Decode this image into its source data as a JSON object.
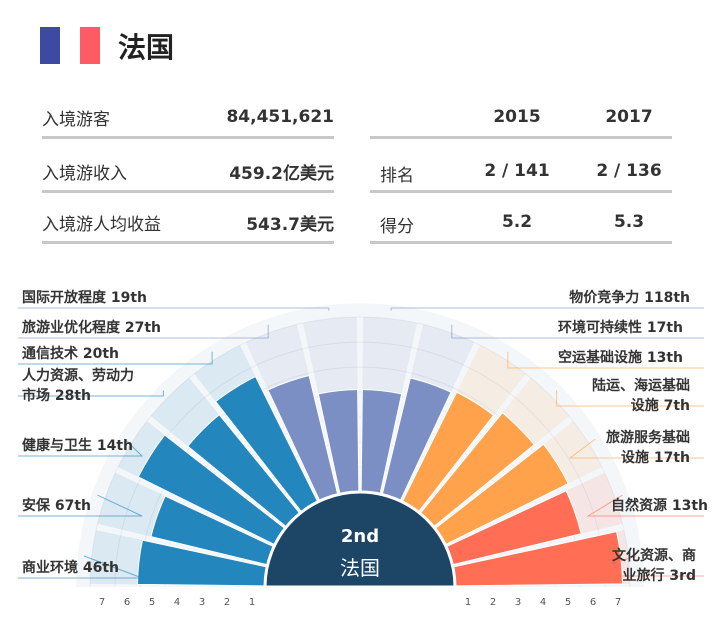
{
  "header": {
    "title": "法国",
    "flag_colors": [
      "#3d4aa1",
      "#ffffff",
      "#ff5b65"
    ]
  },
  "stats": [
    {
      "label": "入境游客",
      "value": "84,451,621"
    },
    {
      "label": "入境游收入",
      "value": "459.2亿美元"
    },
    {
      "label": "入境游人均收益",
      "value": "543.7美元"
    }
  ],
  "ranking": {
    "years": [
      "2015",
      "2017"
    ],
    "rows": [
      {
        "label": "排名",
        "v2015": "2 / 141",
        "v2017": "2 / 136"
      },
      {
        "label": "得分",
        "v2015": "5.2",
        "v2017": "5.3"
      }
    ]
  },
  "chart_data": {
    "type": "polar-bar",
    "center_rank": "2nd",
    "center_label": "法国",
    "scale_ticks": [
      "1",
      "2",
      "3",
      "4",
      "5",
      "6",
      "7"
    ],
    "left_ticks": [
      "7",
      "6",
      "5",
      "4",
      "3",
      "2",
      "1"
    ],
    "series": [
      {
        "label": "商业环境  46th",
        "rank": 46,
        "score": 5.1,
        "color": "#2386bd"
      },
      {
        "label": "安保  67th",
        "rank": 67,
        "score": 4.8,
        "color": "#2386bd"
      },
      {
        "label": "健康与卫生 14th",
        "rank": 14,
        "score": 6.1,
        "color": "#2386bd"
      },
      {
        "label": "人力资源、劳动力 市场  28th",
        "rank": 28,
        "score": 5.1,
        "color": "#2386bd"
      },
      {
        "label": "通信技术  20th",
        "rank": 20,
        "score": 5.6,
        "color": "#2386bd"
      },
      {
        "label": "旅游业优化程度  27th",
        "rank": 27,
        "score": 4.9,
        "color": "#7b8fc4"
      },
      {
        "label": "国际开放程度  19th",
        "rank": 19,
        "score": 4.1,
        "color": "#7b8fc4"
      },
      {
        "label": "物价竞争力  118th",
        "rank": 118,
        "score": 4.1,
        "color": "#7b8fc4"
      },
      {
        "label": "环境可持续性  17th",
        "rank": 17,
        "score": 4.8,
        "color": "#7b8fc4"
      },
      {
        "label": "空运基础设施  13th",
        "rank": 13,
        "score": 4.9,
        "color": "#ffa24b"
      },
      {
        "label": "陆运、海运基础 设施  7th",
        "rank": 7,
        "score": 5.2,
        "color": "#ffa24b"
      },
      {
        "label": "旅游服务基础 设施  17th",
        "rank": 17,
        "score": 5.5,
        "color": "#ffa24b"
      },
      {
        "label": "自然资源  13th",
        "rank": 13,
        "score": 5.3,
        "color": "#ff6e55"
      },
      {
        "label": "文化资源、商 业旅行  3rd",
        "rank": 3,
        "score": 6.7,
        "color": "#ff6e55"
      }
    ]
  }
}
